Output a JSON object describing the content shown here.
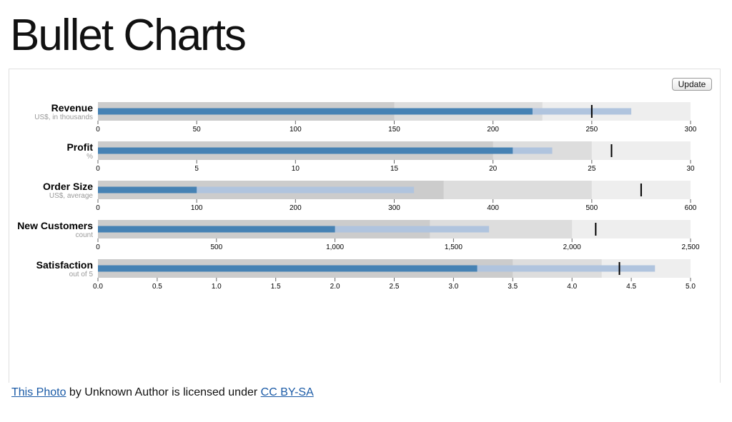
{
  "page": {
    "title": "Bullet Charts",
    "update_label": "Update"
  },
  "credit": {
    "photo_link": "This Photo",
    "middle_text": " by Unknown Author is licensed under ",
    "license_link": "CC BY-SA"
  },
  "chart_data": {
    "type": "bullet",
    "colors": {
      "range_light": "#eeeeee",
      "range_mid": "#dddddd",
      "range_dark": "#cccccc",
      "measure_dark": "#4682b4",
      "measure_light": "#b0c4de",
      "marker": "#000000"
    },
    "bullets": [
      {
        "title": "Revenue",
        "subtitle": "US$, in thousands",
        "ranges": [
          150,
          225,
          300
        ],
        "measures": [
          220,
          270
        ],
        "marker": 250,
        "domain": [
          0,
          300
        ],
        "ticks": [
          "0",
          "50",
          "100",
          "150",
          "200",
          "250",
          "300"
        ],
        "tick_values": [
          0,
          50,
          100,
          150,
          200,
          250,
          300
        ]
      },
      {
        "title": "Profit",
        "subtitle": "%",
        "ranges": [
          20,
          25,
          30
        ],
        "measures": [
          21,
          23
        ],
        "marker": 26,
        "domain": [
          0,
          30
        ],
        "ticks": [
          "0",
          "5",
          "10",
          "15",
          "20",
          "25",
          "30"
        ],
        "tick_values": [
          0,
          5,
          10,
          15,
          20,
          25,
          30
        ]
      },
      {
        "title": "Order Size",
        "subtitle": "US$, average",
        "ranges": [
          350,
          500,
          600
        ],
        "measures": [
          100,
          320
        ],
        "marker": 550,
        "domain": [
          0,
          600
        ],
        "ticks": [
          "0",
          "100",
          "200",
          "300",
          "400",
          "500",
          "600"
        ],
        "tick_values": [
          0,
          100,
          200,
          300,
          400,
          500,
          600
        ]
      },
      {
        "title": "New Customers",
        "subtitle": "count",
        "ranges": [
          1400,
          2000,
          2500
        ],
        "measures": [
          1000,
          1650
        ],
        "marker": 2100,
        "domain": [
          0,
          2500
        ],
        "ticks": [
          "0",
          "500",
          "1,000",
          "1,500",
          "2,000",
          "2,500"
        ],
        "tick_values": [
          0,
          500,
          1000,
          1500,
          2000,
          2500
        ]
      },
      {
        "title": "Satisfaction",
        "subtitle": "out of 5",
        "ranges": [
          3.5,
          4.25,
          5
        ],
        "measures": [
          3.2,
          4.7
        ],
        "marker": 4.4,
        "domain": [
          0,
          5
        ],
        "ticks": [
          "0.0",
          "0.5",
          "1.0",
          "1.5",
          "2.0",
          "2.5",
          "3.0",
          "3.5",
          "4.0",
          "4.5",
          "5.0"
        ],
        "tick_values": [
          0,
          0.5,
          1,
          1.5,
          2,
          2.5,
          3,
          3.5,
          4,
          4.5,
          5
        ]
      }
    ]
  }
}
